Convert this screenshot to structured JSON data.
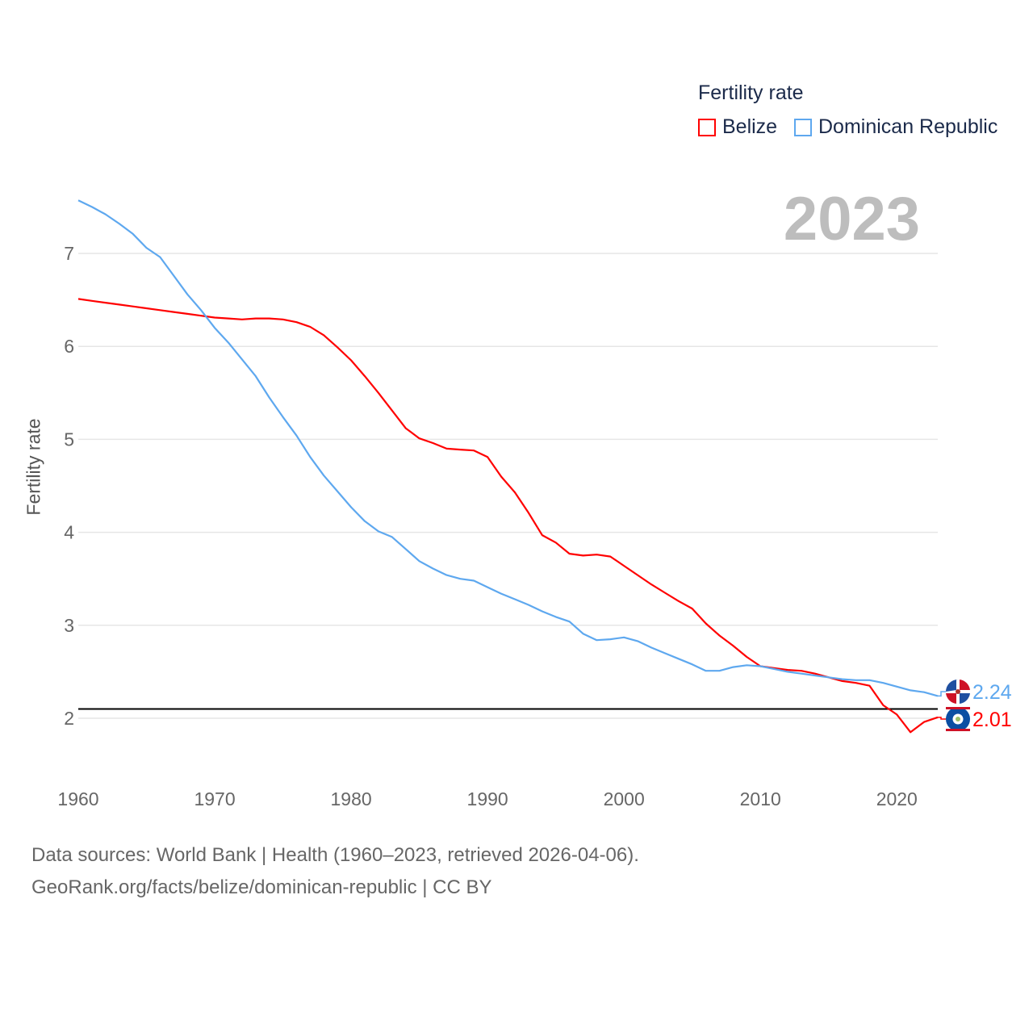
{
  "chart_data": {
    "type": "line",
    "title": "",
    "legend_title": "Fertility rate",
    "legend_placement": "top-right",
    "xlabel": "",
    "ylabel": "Fertility rate",
    "xlim": [
      1960,
      2023
    ],
    "ylim": [
      1.5,
      7.6
    ],
    "x_ticks": [
      "1960",
      "1970",
      "1980",
      "1990",
      "2000",
      "2010",
      "2020"
    ],
    "y_ticks": [
      "2",
      "3",
      "4",
      "5",
      "6",
      "7"
    ],
    "reference_line": 2.1,
    "year_label": "2023",
    "x": [
      1960,
      1961,
      1962,
      1963,
      1964,
      1965,
      1966,
      1967,
      1968,
      1969,
      1970,
      1971,
      1972,
      1973,
      1974,
      1975,
      1976,
      1977,
      1978,
      1979,
      1980,
      1981,
      1982,
      1983,
      1984,
      1985,
      1986,
      1987,
      1988,
      1989,
      1990,
      1991,
      1992,
      1993,
      1994,
      1995,
      1996,
      1997,
      1998,
      1999,
      2000,
      2001,
      2002,
      2003,
      2004,
      2005,
      2006,
      2007,
      2008,
      2009,
      2010,
      2011,
      2012,
      2013,
      2014,
      2015,
      2016,
      2017,
      2018,
      2019,
      2020,
      2021,
      2022,
      2023
    ],
    "series": [
      {
        "name": "Belize",
        "color": "#ff0000",
        "end_label": "2.01",
        "values": [
          6.51,
          6.49,
          6.47,
          6.45,
          6.43,
          6.41,
          6.39,
          6.37,
          6.35,
          6.33,
          6.31,
          6.3,
          6.29,
          6.3,
          6.3,
          6.29,
          6.26,
          6.21,
          6.12,
          5.99,
          5.85,
          5.68,
          5.5,
          5.31,
          5.12,
          5.01,
          4.96,
          4.9,
          4.89,
          4.88,
          4.81,
          4.6,
          4.43,
          4.21,
          3.97,
          3.89,
          3.77,
          3.75,
          3.76,
          3.74,
          3.64,
          3.54,
          3.44,
          3.35,
          3.26,
          3.18,
          3.02,
          2.89,
          2.78,
          2.66,
          2.56,
          2.54,
          2.52,
          2.51,
          2.48,
          2.44,
          2.4,
          2.38,
          2.35,
          2.14,
          2.04,
          1.85,
          1.96,
          2.01
        ]
      },
      {
        "name": "Dominican Republic",
        "color": "#5ea8ef",
        "end_label": "2.24",
        "values": [
          7.57,
          7.5,
          7.42,
          7.32,
          7.21,
          7.06,
          6.96,
          6.76,
          6.56,
          6.39,
          6.2,
          6.04,
          5.86,
          5.68,
          5.45,
          5.24,
          5.04,
          4.81,
          4.61,
          4.44,
          4.27,
          4.12,
          4.01,
          3.95,
          3.82,
          3.69,
          3.61,
          3.54,
          3.5,
          3.48,
          3.41,
          3.34,
          3.28,
          3.22,
          3.15,
          3.09,
          3.04,
          2.91,
          2.84,
          2.85,
          2.87,
          2.83,
          2.76,
          2.7,
          2.64,
          2.58,
          2.51,
          2.51,
          2.55,
          2.57,
          2.56,
          2.53,
          2.5,
          2.48,
          2.46,
          2.44,
          2.42,
          2.41,
          2.41,
          2.38,
          2.34,
          2.3,
          2.28,
          2.24
        ]
      }
    ]
  },
  "footer": {
    "line1": "Data sources: World Bank | Health (1960–2023, retrieved 2026-04-06).",
    "line2": "GeoRank.org/facts/belize/dominican-republic | CC BY"
  }
}
